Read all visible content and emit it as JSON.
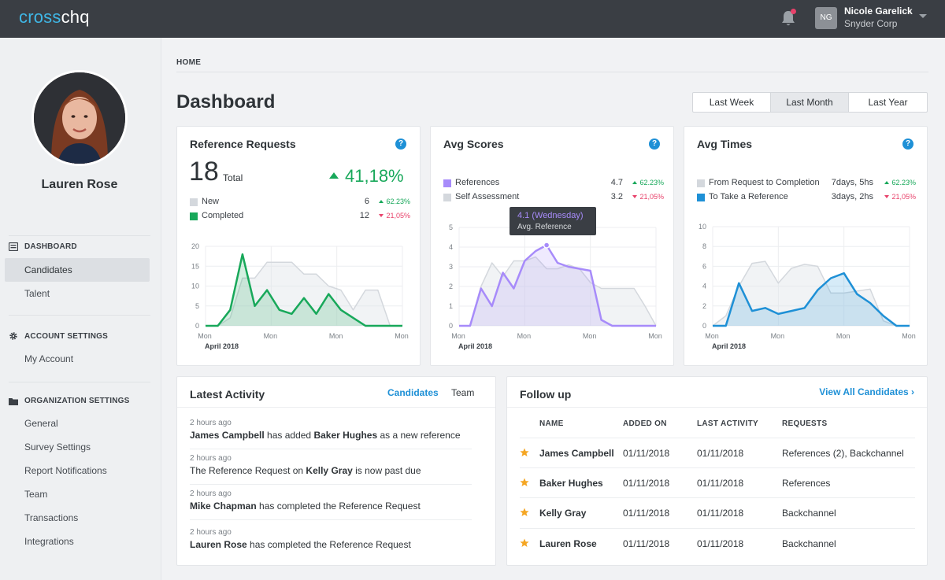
{
  "app": {
    "logo_part1": "cross",
    "logo_part2": "chq",
    "user_initials": "NG",
    "user_name": "Nicole Garelick",
    "user_org": "Snyder Corp"
  },
  "sidebar": {
    "profile_name": "Lauren Rose",
    "sections": [
      {
        "heading": "DASHBOARD",
        "icon": "dashboard-icon",
        "items": [
          {
            "label": "Candidates",
            "active": true
          },
          {
            "label": "Talent",
            "active": false
          }
        ]
      },
      {
        "heading": "ACCOUNT SETTINGS",
        "icon": "gear-icon",
        "items": [
          {
            "label": "My Account",
            "active": false
          }
        ]
      },
      {
        "heading": "ORGANIZATION SETTINGS",
        "icon": "folder-icon",
        "items": [
          {
            "label": "General"
          },
          {
            "label": "Survey Settings"
          },
          {
            "label": "Report Notifications"
          },
          {
            "label": "Team"
          },
          {
            "label": "Transactions"
          },
          {
            "label": "Integrations"
          }
        ]
      }
    ]
  },
  "main": {
    "breadcrumb": "HOME",
    "title": "Dashboard",
    "range_buttons": [
      "Last Week",
      "Last Month",
      "Last Year"
    ],
    "range_active": "Last Month"
  },
  "cards": {
    "reference_requests": {
      "title": "Reference Requests",
      "total": "18",
      "total_label": "Total",
      "change": "41,18%",
      "rows": [
        {
          "label": "New",
          "value": "6",
          "delta": "62.23%",
          "dir": "up",
          "color": "#d4d8dd"
        },
        {
          "label": "Completed",
          "value": "12",
          "delta": "21,05%",
          "dir": "down",
          "color": "#18a85a"
        }
      ]
    },
    "avg_scores": {
      "title": "Avg Scores",
      "rows": [
        {
          "label": "References",
          "value": "4.7",
          "delta": "62.23%",
          "dir": "up",
          "color": "#a78bfa"
        },
        {
          "label": "Self Assessment",
          "value": "3.2",
          "delta": "21,05%",
          "dir": "down",
          "color": "#d4d8dd"
        }
      ],
      "tooltip_value": "4.1 (Wednesday)",
      "tooltip_label": "Avg. Reference"
    },
    "avg_times": {
      "title": "Avg Times",
      "rows": [
        {
          "label": "From Request to Completion",
          "value": "7days, 5hs",
          "delta": "62.23%",
          "dir": "up",
          "color": "#d4d8dd"
        },
        {
          "label": "To Take a Reference",
          "value": "3days, 2hs",
          "delta": "21,05%",
          "dir": "down",
          "color": "#1e90d6"
        }
      ]
    }
  },
  "chart_data": [
    {
      "type": "area",
      "title": "Reference Requests",
      "x_tick_labels": [
        "Mon",
        "Mon",
        "Mon",
        "Mon"
      ],
      "x_group_label": "April 2018",
      "ylim": [
        0,
        20
      ],
      "yticks": [
        0,
        5,
        10,
        15,
        20
      ],
      "series": [
        {
          "name": "New",
          "color": "#d4d8dd",
          "values": [
            0,
            0,
            2,
            12,
            12,
            16,
            16,
            16,
            13,
            13,
            10,
            9,
            4,
            9,
            9,
            0,
            0
          ]
        },
        {
          "name": "Completed",
          "color": "#18a85a",
          "values": [
            0,
            0,
            4,
            18,
            5,
            9,
            4,
            3,
            7,
            3,
            8,
            4,
            2,
            0,
            0,
            0,
            0
          ]
        }
      ]
    },
    {
      "type": "area",
      "title": "Avg Scores",
      "x_tick_labels": [
        "Mon",
        "Mon",
        "Mon",
        "Mon"
      ],
      "x_group_label": "April 2018",
      "ylim": [
        0,
        5
      ],
      "yticks": [
        0,
        1,
        2,
        3,
        4,
        5
      ],
      "series": [
        {
          "name": "Self Assessment",
          "color": "#d4d8dd",
          "values": [
            0,
            0,
            2,
            3.2,
            2.5,
            3.3,
            3.3,
            3.5,
            2.9,
            2.9,
            3.1,
            2.9,
            2.2,
            1.9,
            1.9,
            1.9,
            1.9,
            1.0,
            0.0
          ]
        },
        {
          "name": "References",
          "color": "#a78bfa",
          "values": [
            0,
            0,
            1.9,
            1.0,
            2.7,
            1.9,
            3.3,
            3.8,
            4.1,
            3.2,
            3.0,
            2.9,
            2.8,
            0.3,
            0,
            0,
            0,
            0,
            0
          ]
        }
      ]
    },
    {
      "type": "area",
      "title": "Avg Times",
      "x_tick_labels": [
        "Mon",
        "Mon",
        "Mon",
        "Mon"
      ],
      "x_group_label": "April 2018",
      "ylim": [
        0,
        10
      ],
      "yticks": [
        0,
        2,
        4,
        6,
        8,
        10
      ],
      "series": [
        {
          "name": "From Request to Completion",
          "color": "#d4d8dd",
          "values": [
            0,
            1,
            4,
            6.3,
            6.5,
            4.3,
            5.8,
            6.2,
            6.0,
            3.3,
            3.3,
            3.5,
            3.7,
            0.5,
            0,
            0
          ]
        },
        {
          "name": "To Take a Reference",
          "color": "#1e90d6",
          "values": [
            0,
            0,
            4.3,
            1.5,
            1.8,
            1.2,
            1.5,
            1.8,
            3.6,
            4.8,
            5.3,
            3.2,
            2.3,
            1.0,
            0,
            0
          ]
        }
      ]
    }
  ],
  "activity": {
    "title": "Latest Activity",
    "tabs": [
      "Candidates",
      "Team"
    ],
    "items": [
      {
        "time": "2 hours ago",
        "bold1": "James Campbell",
        "text": " has added ",
        "bold2": "Baker Hughes",
        "text2": " as a new reference"
      },
      {
        "time": "2 hours ago",
        "bold1": "",
        "text": "The Reference Request on ",
        "bold2": "Kelly Gray",
        "text2": " is now past due"
      },
      {
        "time": "2 hours ago",
        "bold1": "Mike Chapman",
        "text": " has completed the Reference Request",
        "bold2": "",
        "text2": ""
      },
      {
        "time": "2 hours ago",
        "bold1": "Lauren Rose",
        "text": " has completed the Reference Request",
        "bold2": "",
        "text2": ""
      }
    ]
  },
  "followup": {
    "title": "Follow up",
    "link": "View All Candidates ›",
    "headers": [
      "NAME",
      "ADDED ON",
      "LAST ACTIVITY",
      "REQUESTS"
    ],
    "rows": [
      {
        "name": "James Campbell",
        "added": "01/11/2018",
        "last": "01/11/2018",
        "requests": "References (2), Backchannel"
      },
      {
        "name": "Baker Hughes",
        "added": "01/11/2018",
        "last": "01/11/2018",
        "requests": "References"
      },
      {
        "name": "Kelly Gray",
        "added": "01/11/2018",
        "last": "01/11/2018",
        "requests": "Backchannel"
      },
      {
        "name": "Lauren Rose",
        "added": "01/11/2018",
        "last": "01/11/2018",
        "requests": "Backchannel"
      }
    ],
    "star_color": "#f5a623"
  }
}
